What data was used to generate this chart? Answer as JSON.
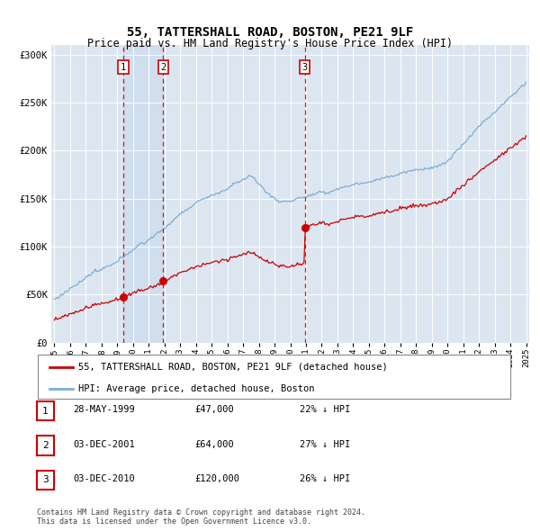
{
  "title": "55, TATTERSHALL ROAD, BOSTON, PE21 9LF",
  "subtitle": "Price paid vs. HM Land Registry's House Price Index (HPI)",
  "ylim": [
    0,
    310000
  ],
  "yticks": [
    0,
    50000,
    100000,
    150000,
    200000,
    250000,
    300000
  ],
  "ytick_labels": [
    "£0",
    "£50K",
    "£100K",
    "£150K",
    "£200K",
    "£250K",
    "£300K"
  ],
  "plot_background": "#dce6f1",
  "sale_color": "#cc0000",
  "hpi_color": "#7bafd4",
  "vline_color": "#cc0000",
  "shade_color": "#c5d8ed",
  "sale_year_floats": [
    1999.37,
    2001.92,
    2010.92
  ],
  "sale_prices": [
    47000,
    64000,
    120000
  ],
  "box_labels": [
    "1",
    "2",
    "3"
  ],
  "legend_entries": [
    {
      "label": "55, TATTERSHALL ROAD, BOSTON, PE21 9LF (detached house)",
      "color": "#cc0000"
    },
    {
      "label": "HPI: Average price, detached house, Boston",
      "color": "#7bafd4"
    }
  ],
  "table_rows": [
    {
      "num": "1",
      "date": "28-MAY-1999",
      "price": "£47,000",
      "pct": "22% ↓ HPI"
    },
    {
      "num": "2",
      "date": "03-DEC-2001",
      "price": "£64,000",
      "pct": "27% ↓ HPI"
    },
    {
      "num": "3",
      "date": "03-DEC-2010",
      "price": "£120,000",
      "pct": "26% ↓ HPI"
    }
  ],
  "footnote": "Contains HM Land Registry data © Crown copyright and database right 2024.\nThis data is licensed under the Open Government Licence v3.0.",
  "x_start_year": 1995,
  "x_end_year": 2025
}
